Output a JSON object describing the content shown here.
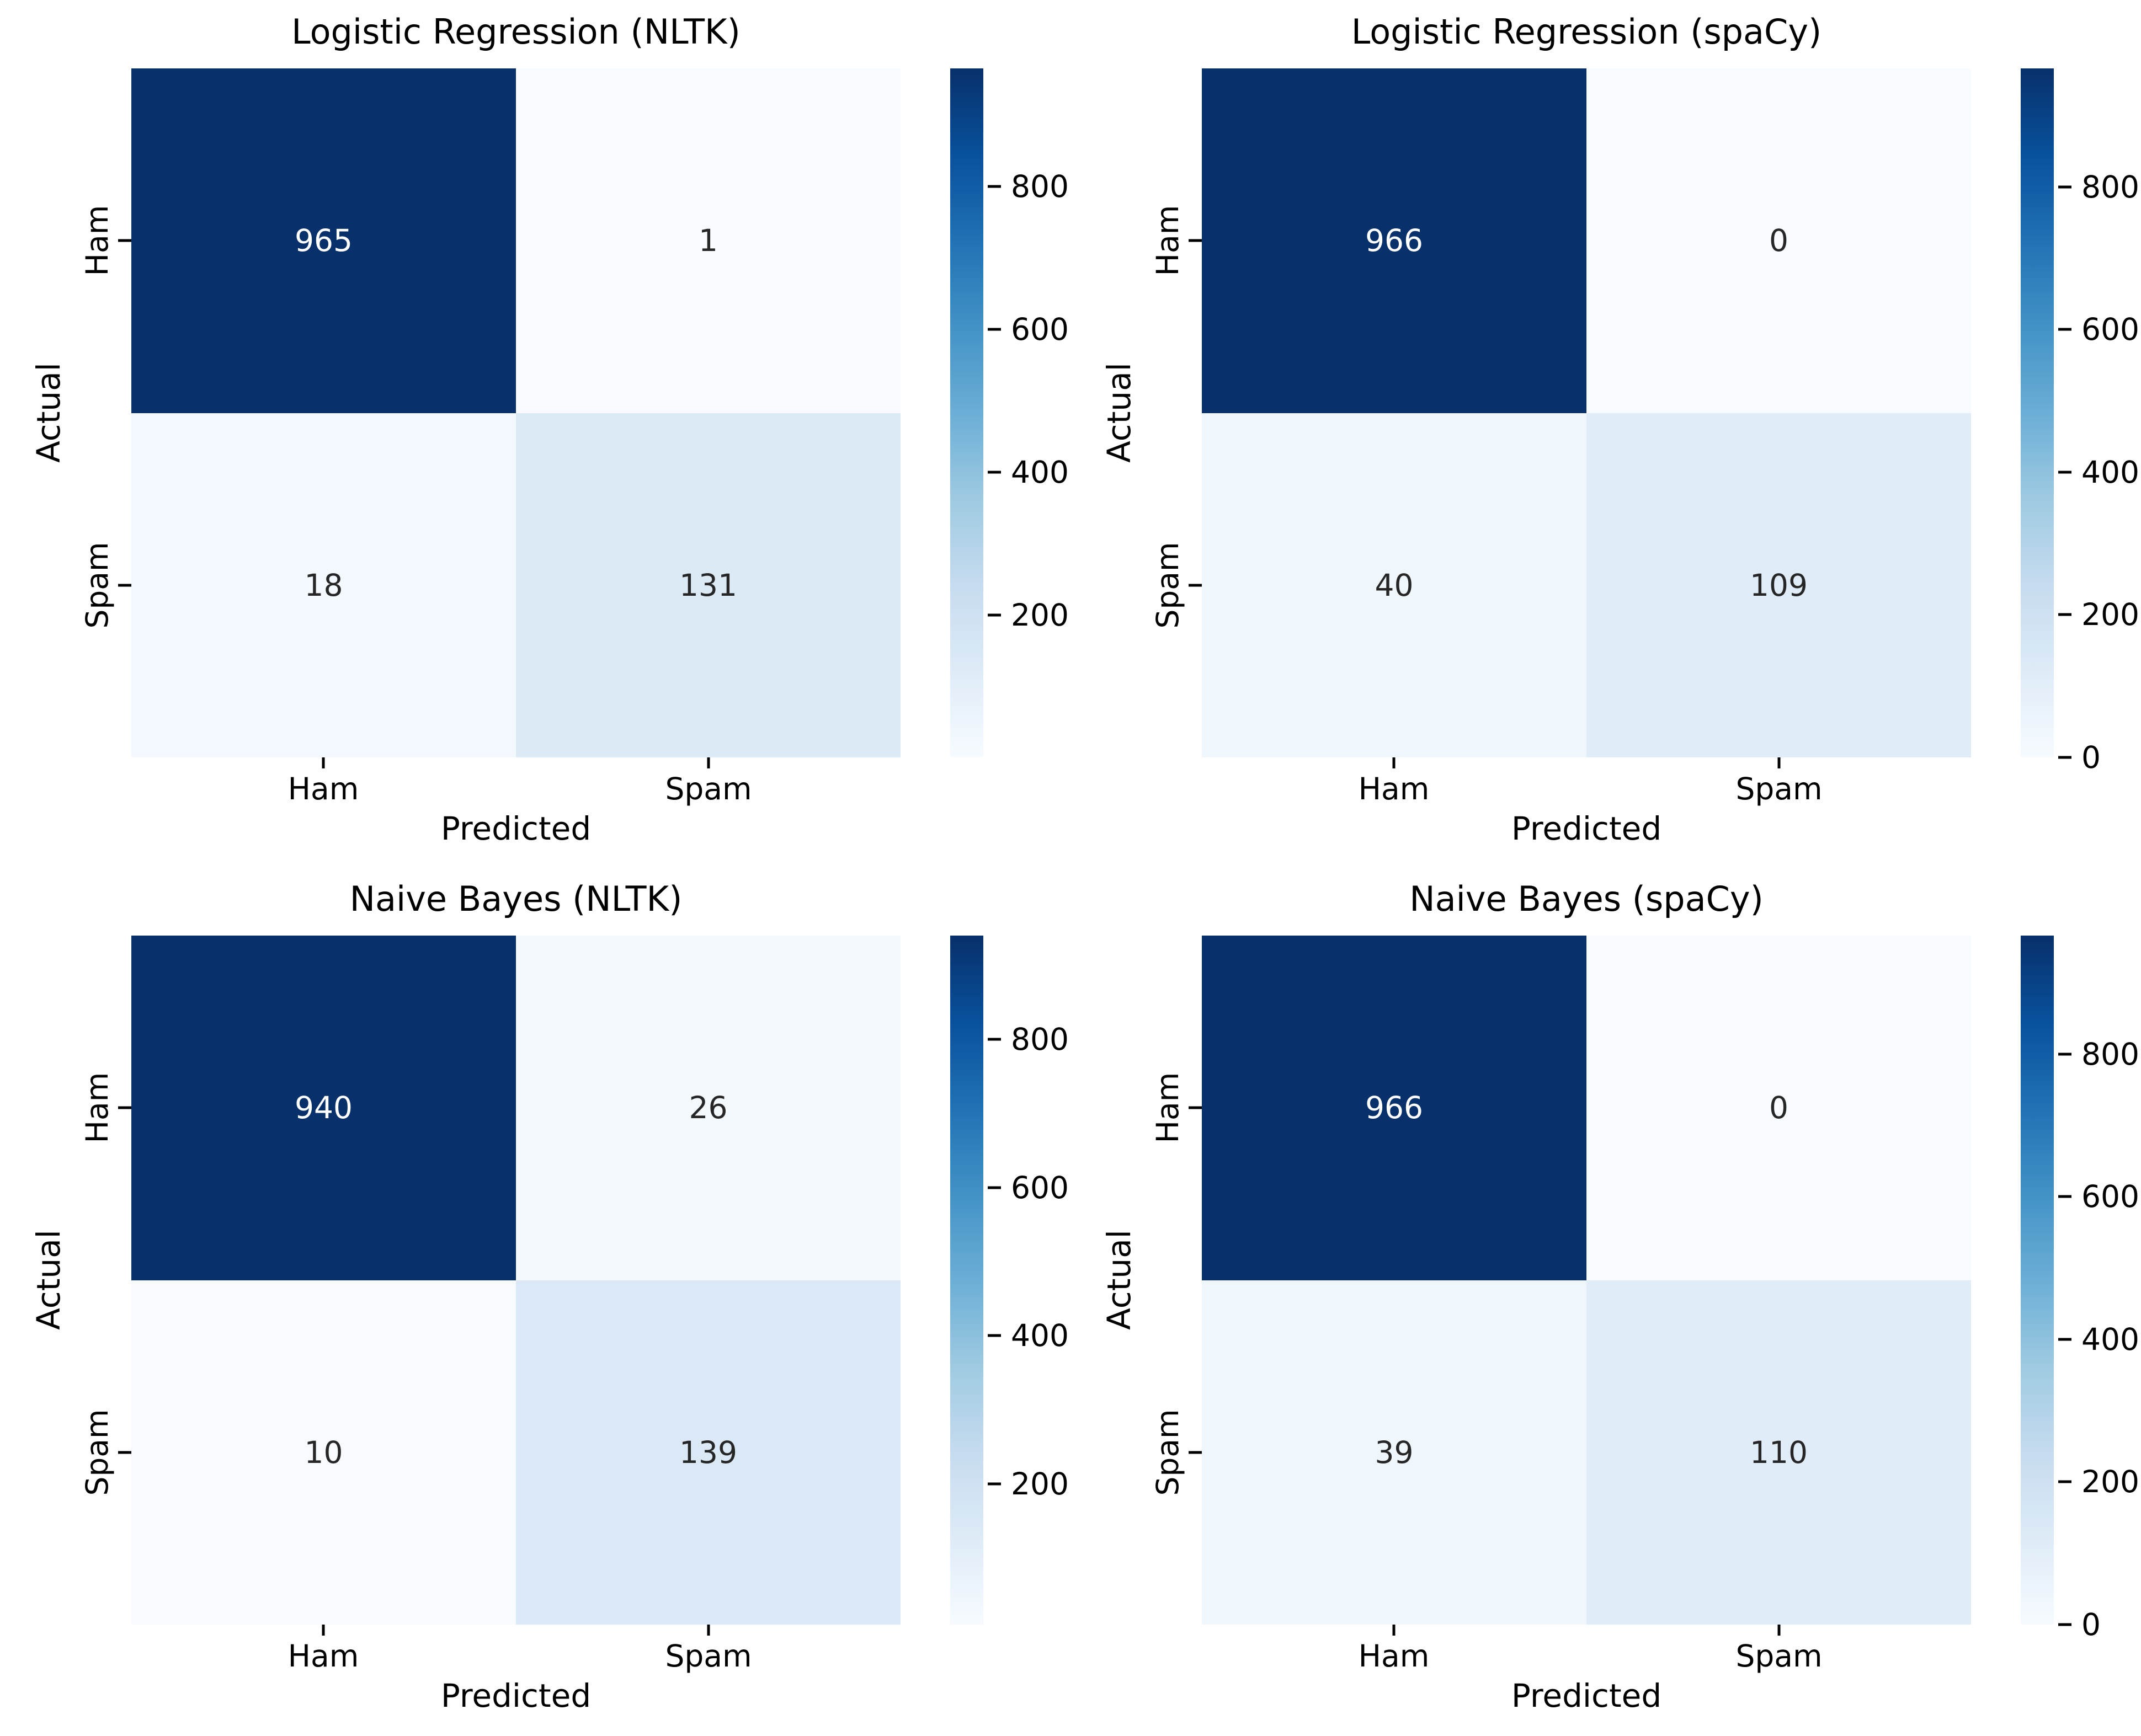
{
  "figure": {
    "background": "#ffffff",
    "axis_text_color": "#000000",
    "annotation_dark_text": "#262626",
    "annotation_light_text": "#ffffff",
    "colormap": {
      "name": "Blues",
      "stops": [
        "#f7fbff",
        "#deebf7",
        "#c6dbef",
        "#9ecae1",
        "#6baed6",
        "#4292c6",
        "#2171b5",
        "#08519c",
        "#08306b"
      ]
    }
  },
  "chart_data": [
    {
      "type": "heatmap",
      "title": "Logistic Regression (NLTK)",
      "xlabel": "Predicted",
      "ylabel": "Actual",
      "x_ticklabels": [
        "Ham",
        "Spam"
      ],
      "y_ticklabels": [
        "Ham",
        "Spam"
      ],
      "matrix": [
        [
          965,
          1
        ],
        [
          18,
          131
        ]
      ],
      "vmin": 1,
      "vmax": 965,
      "colorbar": true,
      "colorbar_ticks": [
        800,
        600,
        400,
        200
      ],
      "grid": false,
      "legend_position": "right-colorbar"
    },
    {
      "type": "heatmap",
      "title": "Logistic Regression (spaCy)",
      "xlabel": "Predicted",
      "ylabel": "Actual",
      "x_ticklabels": [
        "Ham",
        "Spam"
      ],
      "y_ticklabels": [
        "Ham",
        "Spam"
      ],
      "matrix": [
        [
          966,
          0
        ],
        [
          40,
          109
        ]
      ],
      "vmin": 0,
      "vmax": 966,
      "colorbar": true,
      "colorbar_ticks": [
        800,
        600,
        400,
        200,
        0
      ],
      "grid": false,
      "legend_position": "right-colorbar"
    },
    {
      "type": "heatmap",
      "title": "Naive Bayes (NLTK)",
      "xlabel": "Predicted",
      "ylabel": "Actual",
      "x_ticklabels": [
        "Ham",
        "Spam"
      ],
      "y_ticklabels": [
        "Ham",
        "Spam"
      ],
      "matrix": [
        [
          940,
          26
        ],
        [
          10,
          139
        ]
      ],
      "vmin": 10,
      "vmax": 940,
      "colorbar": true,
      "colorbar_ticks": [
        800,
        600,
        400,
        200
      ],
      "grid": false,
      "legend_position": "right-colorbar"
    },
    {
      "type": "heatmap",
      "title": "Naive Bayes (spaCy)",
      "xlabel": "Predicted",
      "ylabel": "Actual",
      "x_ticklabels": [
        "Ham",
        "Spam"
      ],
      "y_ticklabels": [
        "Ham",
        "Spam"
      ],
      "matrix": [
        [
          966,
          0
        ],
        [
          39,
          110
        ]
      ],
      "vmin": 0,
      "vmax": 966,
      "colorbar": true,
      "colorbar_ticks": [
        800,
        600,
        400,
        200,
        0
      ],
      "grid": false,
      "legend_position": "right-colorbar"
    }
  ]
}
